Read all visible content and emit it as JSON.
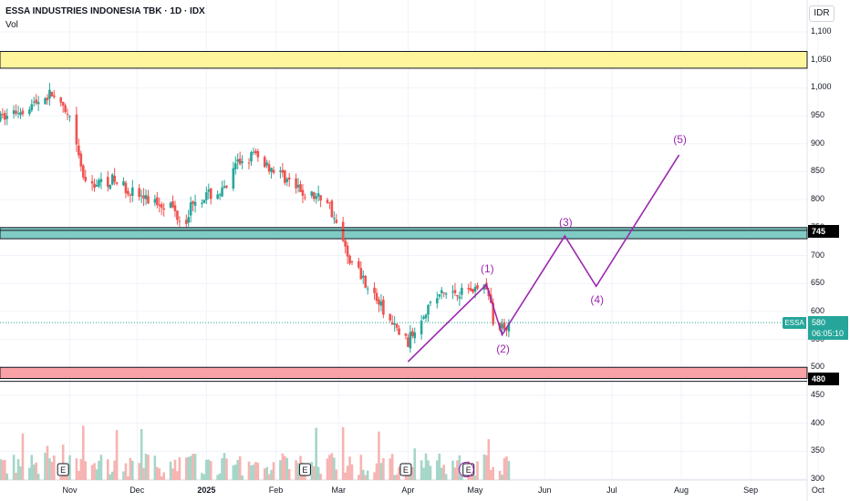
{
  "header": {
    "title": "ESSA INDUSTRIES INDONESIA TBK · 1D · IDX",
    "volume_label": "Vol",
    "currency_button": "IDR"
  },
  "price_scale": [
    "1,100",
    "1,050",
    "1,000",
    "950",
    "900",
    "850",
    "800",
    "750",
    "700",
    "650",
    "600",
    "550",
    "500",
    "450",
    "400",
    "350",
    "300"
  ],
  "time_scale": [
    "Nov",
    "Dec",
    "2025",
    "Feb",
    "Mar",
    "Apr",
    "May",
    "Jun",
    "Jul",
    "Aug",
    "Sep",
    "Oct"
  ],
  "last_price": {
    "symbol": "ESSA",
    "price": "580",
    "countdown": "06:05:10"
  },
  "levels": {
    "resistance": "745",
    "support": "480"
  },
  "wave_labels": [
    "(1)",
    "(2)",
    "(3)",
    "(4)",
    "(5)"
  ],
  "earnings_marker": "E",
  "colors": {
    "up": "#26a69a",
    "down": "#ef5350",
    "zone_yellow": "#fff59d",
    "zone_green": "#80cbc4",
    "zone_red": "#f8a1a6",
    "wave": "#9c27b0"
  },
  "chart_data": {
    "type": "candlestick",
    "y_range": [
      300,
      1100
    ],
    "last_price": 580,
    "zones": [
      {
        "color": "yellow",
        "from": 1035,
        "to": 1065
      },
      {
        "color": "green",
        "from": 730,
        "to": 750
      },
      {
        "color": "red",
        "from": 480,
        "to": 500
      }
    ],
    "horizontal_lines": [
      745,
      480,
      475
    ],
    "projection_path": [
      {
        "date": "2025-04-01",
        "price": 510
      },
      {
        "date": "2025-05-06",
        "price": 648
      },
      {
        "date": "2025-05-13",
        "price": 558
      },
      {
        "date": "2025-06-10",
        "price": 735
      },
      {
        "date": "2025-06-24",
        "price": 645
      },
      {
        "date": "2025-07-31",
        "price": 880
      }
    ]
  }
}
